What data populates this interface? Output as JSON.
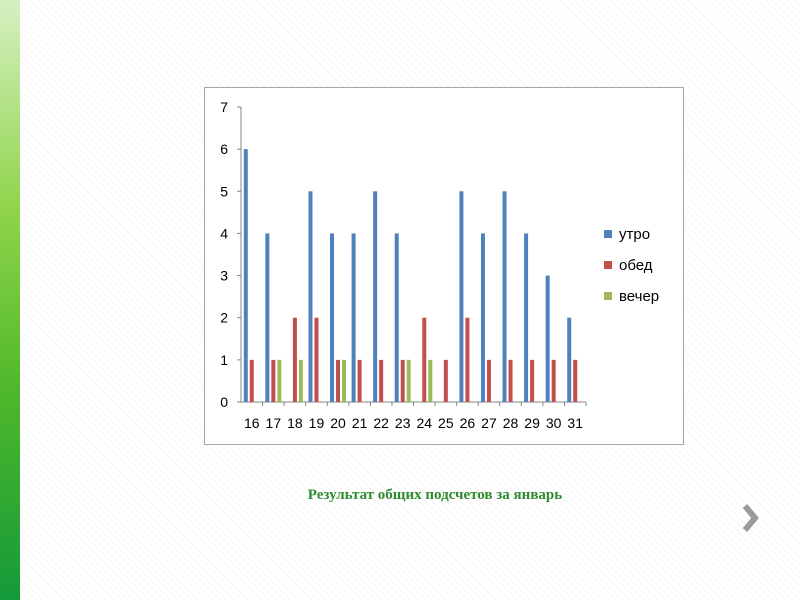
{
  "colors": {
    "accent_green": "#6cc04a",
    "caption": "#2e8b2e",
    "arrow": "#9b9b9b"
  },
  "icons": {
    "next": "chevron-right-icon"
  },
  "caption": "Результат общих подсчетов за январь",
  "chart_data": {
    "type": "bar",
    "title": "",
    "xlabel": "",
    "ylabel": "",
    "ylim": [
      0,
      7
    ],
    "yticks": [
      "0",
      "1",
      "2",
      "3",
      "4",
      "5",
      "6",
      "7"
    ],
    "grid": false,
    "legend_position": "right",
    "categories": [
      "16",
      "17",
      "18",
      "19",
      "20",
      "21",
      "22",
      "23",
      "24",
      "25",
      "26",
      "27",
      "28",
      "29",
      "30",
      "31"
    ],
    "series": [
      {
        "name": "утро",
        "color": "#4f81bd",
        "values": [
          6,
          4,
          0,
          5,
          4,
          4,
          5,
          4,
          0,
          0,
          5,
          4,
          5,
          4,
          3,
          2
        ]
      },
      {
        "name": "обед",
        "color": "#c0504d",
        "values": [
          1,
          1,
          2,
          2,
          1,
          1,
          1,
          1,
          2,
          1,
          2,
          1,
          1,
          1,
          1,
          1
        ]
      },
      {
        "name": "вечер",
        "color": "#9bbb59",
        "values": [
          0,
          1,
          1,
          0,
          1,
          0,
          0,
          1,
          1,
          0,
          0,
          0,
          0,
          0,
          0,
          0
        ]
      }
    ]
  }
}
